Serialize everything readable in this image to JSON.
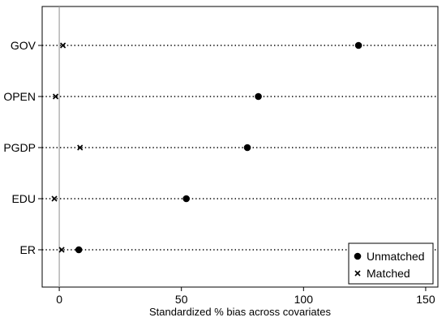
{
  "chart_data": {
    "type": "scatter",
    "orientation": "horizontal-dot",
    "categories": [
      "GOV",
      "OPEN",
      "PGDP",
      "EDU",
      "ER"
    ],
    "series": [
      {
        "name": "Unmatched",
        "marker": "filled-circle",
        "values": [
          122.5,
          81.5,
          77.0,
          52.0,
          8.0
        ]
      },
      {
        "name": "Matched",
        "marker": "x",
        "values": [
          1.5,
          -1.5,
          8.5,
          -2.0,
          1.0
        ]
      }
    ],
    "xlabel": "Standardized % bias across covariates",
    "ylabel": "",
    "xlim": [
      -7,
      155
    ],
    "xticks": [
      0,
      50,
      100,
      150
    ],
    "reference_line": 0,
    "grid": "dotted horizontal guide lines per category",
    "legend_position": "bottom-right",
    "colors": {
      "marker": "#000000",
      "reference_line": "#a0a0a0",
      "axis": "#000000"
    }
  }
}
